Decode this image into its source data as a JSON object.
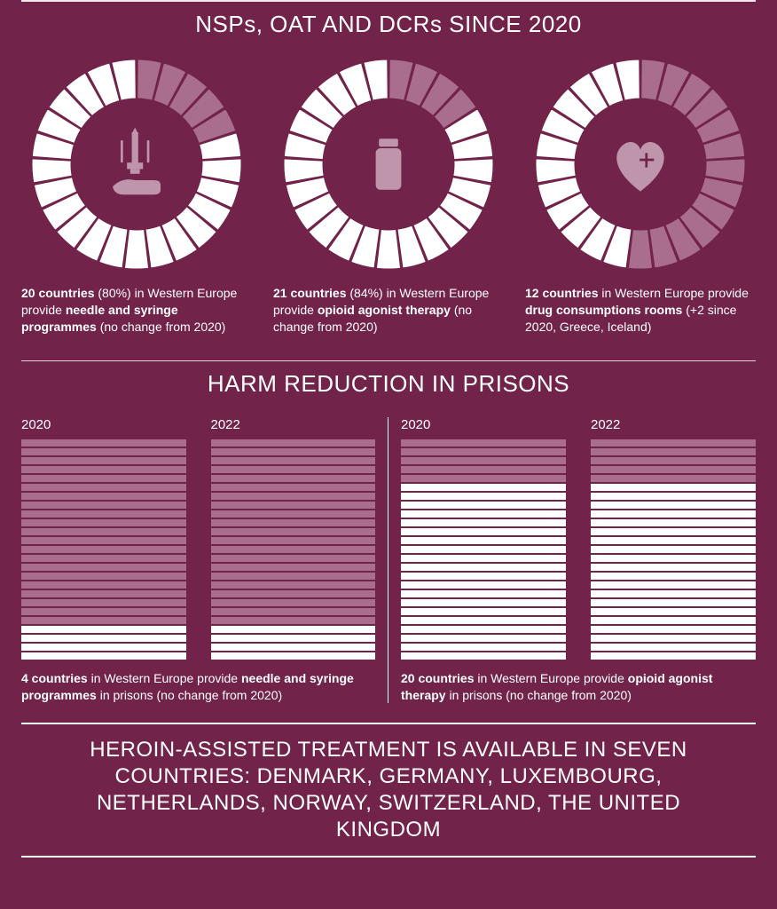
{
  "colors": {
    "background": "#72234a",
    "text": "#ffffff",
    "segment_empty": "#a96e8d",
    "segment_filled": "#ffffff",
    "icon": "#bf95ab",
    "gap_stroke": "#72234a"
  },
  "section1": {
    "title": "NSPs, OAT AND DCRs SINCE 2020",
    "total_segments": 25,
    "ring": {
      "outer_r": 118,
      "inner_r": 74,
      "gap_deg": 1.2
    },
    "donuts": [
      {
        "id": "nsp",
        "icon": "hand-syringe",
        "filled": 20,
        "caption_bold1": "20 countries",
        "caption_mid1": " (80%) in Western Europe provide ",
        "caption_bold2": "needle and syringe programmes",
        "caption_tail": " (no change from 2020)"
      },
      {
        "id": "oat",
        "icon": "bottle",
        "filled": 21,
        "caption_bold1": "21 countries",
        "caption_mid1": " (84%) in Western Europe provide ",
        "caption_bold2": "opioid agonist therapy",
        "caption_tail": " (no change from 2020)"
      },
      {
        "id": "dcr",
        "icon": "heart-plus",
        "filled": 12,
        "caption_bold1": "12 countries",
        "caption_mid1": " in Western Europe provide ",
        "caption_bold2": "drug consumptions rooms",
        "caption_tail": " (+2 since 2020, Greece, Iceland)"
      }
    ]
  },
  "section2": {
    "title": "HARM REDUCTION IN PRISONS",
    "total_bars": 25,
    "groups": [
      {
        "id": "prison-nsp",
        "years": [
          {
            "label": "2020",
            "filled": 4
          },
          {
            "label": "2022",
            "filled": 4
          }
        ],
        "caption_bold1": "4 countries",
        "caption_mid1": " in Western Europe provide ",
        "caption_bold2": "needle and syringe programmes",
        "caption_tail": " in prisons (no change from 2020)"
      },
      {
        "id": "prison-oat",
        "years": [
          {
            "label": "2020",
            "filled": 20
          },
          {
            "label": "2022",
            "filled": 20
          }
        ],
        "caption_bold1": "20 countries",
        "caption_mid1": " in Western Europe provide ",
        "caption_bold2": "opioid agonist therapy",
        "caption_tail": " in prisons (no change from 2020)"
      }
    ]
  },
  "footer": {
    "text": "HEROIN-ASSISTED TREATMENT IS AVAILABLE IN SEVEN COUNTRIES: DENMARK, GERMANY, LUXEMBOURG, NETHERLANDS, NORWAY, SWITZERLAND, THE UNITED KINGDOM"
  }
}
